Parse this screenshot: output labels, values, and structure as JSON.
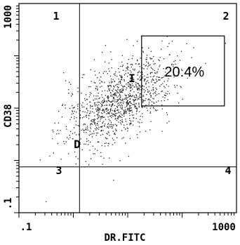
{
  "chart_data": {
    "type": "scatter",
    "xlabel": "DR.FITC",
    "ylabel": "CD38",
    "xscale": "log",
    "yscale": "log",
    "xlim": [
      0.1,
      1000
    ],
    "ylim": [
      0.1,
      1000
    ],
    "x_tick_labels": [
      ".1",
      "1000"
    ],
    "y_tick_labels": [
      ".1",
      "1000"
    ],
    "quadrant_labels": [
      "1",
      "2",
      "3",
      "4"
    ],
    "quadrant_divider": {
      "x": 1.3,
      "y": 0.75
    },
    "gate_labels": [
      "I",
      "D"
    ],
    "gate_region": {
      "x": [
        18,
        600
      ],
      "y": [
        11,
        240
      ]
    },
    "gate_percent": "20.4%",
    "point_color": "#222222",
    "cluster": {
      "center_x": 7,
      "center_y": 14,
      "spread_x_decades": 0.5,
      "spread_y_decades": 0.45,
      "count": 1200,
      "seed": 7
    },
    "grid": false
  }
}
